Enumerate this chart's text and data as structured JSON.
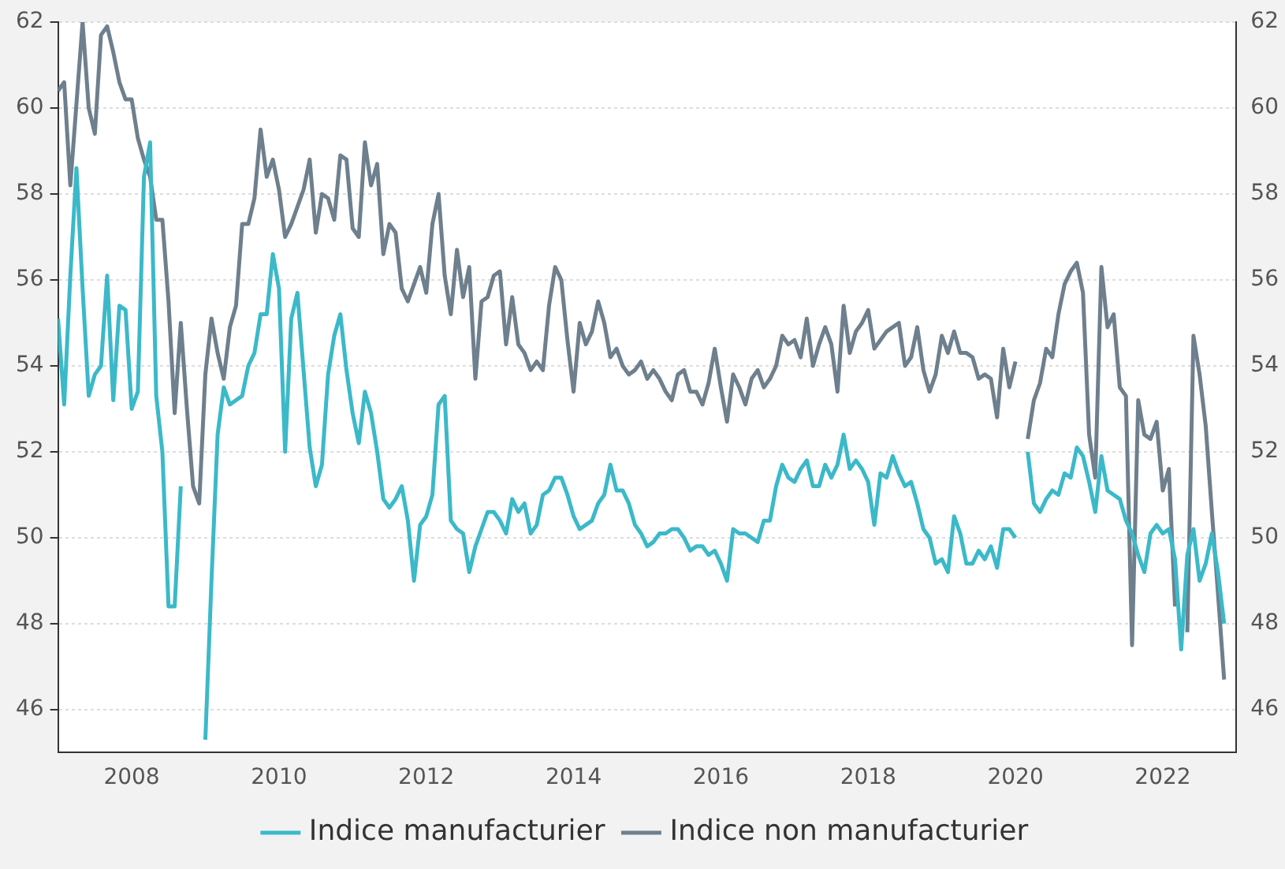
{
  "chart_data": {
    "type": "line",
    "x": [
      "2007-01",
      "2007-02",
      "2007-03",
      "2007-04",
      "2007-05",
      "2007-06",
      "2007-07",
      "2007-08",
      "2007-09",
      "2007-10",
      "2007-11",
      "2007-12",
      "2008-01",
      "2008-02",
      "2008-03",
      "2008-04",
      "2008-05",
      "2008-06",
      "2008-07",
      "2008-08",
      "2008-09",
      "2008-10",
      "2008-11",
      "2008-12",
      "2009-01",
      "2009-02",
      "2009-03",
      "2009-04",
      "2009-05",
      "2009-06",
      "2009-07",
      "2009-08",
      "2009-09",
      "2009-10",
      "2009-11",
      "2009-12",
      "2010-01",
      "2010-02",
      "2010-03",
      "2010-04",
      "2010-05",
      "2010-06",
      "2010-07",
      "2010-08",
      "2010-09",
      "2010-10",
      "2010-11",
      "2010-12",
      "2011-01",
      "2011-02",
      "2011-03",
      "2011-04",
      "2011-05",
      "2011-06",
      "2011-07",
      "2011-08",
      "2011-09",
      "2011-10",
      "2011-11",
      "2011-12",
      "2012-01",
      "2012-02",
      "2012-03",
      "2012-04",
      "2012-05",
      "2012-06",
      "2012-07",
      "2012-08",
      "2012-09",
      "2012-10",
      "2012-11",
      "2012-12",
      "2013-01",
      "2013-02",
      "2013-03",
      "2013-04",
      "2013-05",
      "2013-06",
      "2013-07",
      "2013-08",
      "2013-09",
      "2013-10",
      "2013-11",
      "2013-12",
      "2014-01",
      "2014-02",
      "2014-03",
      "2014-04",
      "2014-05",
      "2014-06",
      "2014-07",
      "2014-08",
      "2014-09",
      "2014-10",
      "2014-11",
      "2014-12",
      "2015-01",
      "2015-02",
      "2015-03",
      "2015-04",
      "2015-05",
      "2015-06",
      "2015-07",
      "2015-08",
      "2015-09",
      "2015-10",
      "2015-11",
      "2015-12",
      "2016-01",
      "2016-02",
      "2016-03",
      "2016-04",
      "2016-05",
      "2016-06",
      "2016-07",
      "2016-08",
      "2016-09",
      "2016-10",
      "2016-11",
      "2016-12",
      "2017-01",
      "2017-02",
      "2017-03",
      "2017-04",
      "2017-05",
      "2017-06",
      "2017-07",
      "2017-08",
      "2017-09",
      "2017-10",
      "2017-11",
      "2017-12",
      "2018-01",
      "2018-02",
      "2018-03",
      "2018-04",
      "2018-05",
      "2018-06",
      "2018-07",
      "2018-08",
      "2018-09",
      "2018-10",
      "2018-11",
      "2018-12",
      "2019-01",
      "2019-02",
      "2019-03",
      "2019-04",
      "2019-05",
      "2019-06",
      "2019-07",
      "2019-08",
      "2019-09",
      "2019-10",
      "2019-11",
      "2019-12",
      "2020-01",
      "2020-02",
      "2020-03",
      "2020-04",
      "2020-05",
      "2020-06",
      "2020-07",
      "2020-08",
      "2020-09",
      "2020-10",
      "2020-11",
      "2020-12",
      "2021-01",
      "2021-02",
      "2021-03",
      "2021-04",
      "2021-05",
      "2021-06",
      "2021-07",
      "2021-08",
      "2021-09",
      "2021-10",
      "2021-11",
      "2021-12",
      "2022-01",
      "2022-02",
      "2022-03",
      "2022-04",
      "2022-05",
      "2022-06",
      "2022-07",
      "2022-08",
      "2022-09",
      "2022-10",
      "2022-11"
    ],
    "series": [
      {
        "name": "Indice manufacturier",
        "color": "#3bb9c9",
        "values": [
          55.1,
          53.1,
          56.1,
          58.6,
          55.8,
          53.3,
          53.8,
          54.0,
          56.1,
          53.2,
          55.4,
          55.3,
          53.0,
          53.4,
          58.4,
          59.2,
          53.3,
          52.0,
          48.4,
          48.4,
          51.2,
          null,
          null,
          null,
          45.3,
          49.0,
          52.4,
          53.5,
          53.1,
          53.2,
          53.3,
          54.0,
          54.3,
          55.2,
          55.2,
          56.6,
          55.8,
          52.0,
          55.1,
          55.7,
          53.9,
          52.1,
          51.2,
          51.7,
          53.8,
          54.7,
          55.2,
          53.9,
          52.9,
          52.2,
          53.4,
          52.9,
          52.0,
          50.9,
          50.7,
          50.9,
          51.2,
          50.4,
          49.0,
          50.3,
          50.5,
          51.0,
          53.1,
          53.3,
          50.4,
          50.2,
          50.1,
          49.2,
          49.8,
          50.2,
          50.6,
          50.6,
          50.4,
          50.1,
          50.9,
          50.6,
          50.8,
          50.1,
          50.3,
          51.0,
          51.1,
          51.4,
          51.4,
          51.0,
          50.5,
          50.2,
          50.3,
          50.4,
          50.8,
          51.0,
          51.7,
          51.1,
          51.1,
          50.8,
          50.3,
          50.1,
          49.8,
          49.9,
          50.1,
          50.1,
          50.2,
          50.2,
          50.0,
          49.7,
          49.8,
          49.8,
          49.6,
          49.7,
          49.4,
          49.0,
          50.2,
          50.1,
          50.1,
          50.0,
          49.9,
          50.4,
          50.4,
          51.2,
          51.7,
          51.4,
          51.3,
          51.6,
          51.8,
          51.2,
          51.2,
          51.7,
          51.4,
          51.7,
          52.4,
          51.6,
          51.8,
          51.6,
          51.3,
          50.3,
          51.5,
          51.4,
          51.9,
          51.5,
          51.2,
          51.3,
          50.8,
          50.2,
          50.0,
          49.4,
          49.5,
          49.2,
          50.5,
          50.1,
          49.4,
          49.4,
          49.7,
          49.5,
          49.8,
          49.3,
          50.2,
          50.2,
          50.0,
          null,
          52.0,
          50.8,
          50.6,
          50.9,
          51.1,
          51.0,
          51.5,
          51.4,
          52.1,
          51.9,
          51.3,
          50.6,
          51.9,
          51.1,
          51.0,
          50.9,
          50.4,
          50.1,
          49.6,
          49.2,
          50.1,
          50.3,
          50.1,
          50.2,
          49.5,
          47.4,
          49.6,
          50.2,
          49.0,
          49.4,
          50.1,
          49.2,
          48.0
        ]
      },
      {
        "name": "Indice non manufacturier",
        "color": "#6e7f8d",
        "values": [
          60.4,
          60.6,
          58.2,
          60.1,
          62.0,
          60.0,
          59.4,
          61.7,
          61.9,
          61.3,
          60.6,
          60.2,
          60.2,
          59.3,
          58.8,
          58.4,
          57.4,
          57.4,
          55.5,
          52.9,
          55.0,
          53.0,
          51.2,
          50.8,
          53.8,
          55.1,
          54.3,
          53.7,
          54.9,
          55.4,
          57.3,
          57.3,
          57.9,
          59.5,
          58.4,
          58.8,
          58.1,
          57.0,
          57.3,
          57.7,
          58.1,
          58.8,
          57.1,
          58.0,
          57.9,
          57.4,
          58.9,
          58.8,
          57.2,
          57.0,
          59.2,
          58.2,
          58.7,
          56.6,
          57.3,
          57.1,
          55.8,
          55.5,
          55.9,
          56.3,
          55.7,
          57.3,
          58.0,
          56.1,
          55.2,
          56.7,
          55.6,
          56.3,
          53.7,
          55.5,
          55.6,
          56.1,
          56.2,
          54.5,
          55.6,
          54.5,
          54.3,
          53.9,
          54.1,
          53.9,
          55.4,
          56.3,
          56.0,
          54.6,
          53.4,
          55.0,
          54.5,
          54.8,
          55.5,
          55.0,
          54.2,
          54.4,
          54.0,
          53.8,
          53.9,
          54.1,
          53.7,
          53.9,
          53.7,
          53.4,
          53.2,
          53.8,
          53.9,
          53.4,
          53.4,
          53.1,
          53.6,
          54.4,
          53.5,
          52.7,
          53.8,
          53.5,
          53.1,
          53.7,
          53.9,
          53.5,
          53.7,
          54.0,
          54.7,
          54.5,
          54.6,
          54.2,
          55.1,
          54.0,
          54.5,
          54.9,
          54.5,
          53.4,
          55.4,
          54.3,
          54.8,
          55.0,
          55.3,
          54.4,
          54.6,
          54.8,
          54.9,
          55.0,
          54.0,
          54.2,
          54.9,
          53.9,
          53.4,
          53.8,
          54.7,
          54.3,
          54.8,
          54.3,
          54.3,
          54.2,
          53.7,
          53.8,
          53.7,
          52.8,
          54.4,
          53.5,
          54.1,
          null,
          52.3,
          53.2,
          53.6,
          54.4,
          54.2,
          55.2,
          55.9,
          56.2,
          56.4,
          55.7,
          52.4,
          51.4,
          56.3,
          54.9,
          55.2,
          53.5,
          53.3,
          47.5,
          53.2,
          52.4,
          52.3,
          52.7,
          51.1,
          51.6,
          48.4,
          null,
          47.8,
          54.7,
          53.8,
          52.6,
          50.6,
          48.7,
          46.7
        ]
      }
    ],
    "xlim": [
      "2007",
      "2023"
    ],
    "xticks": [
      "2008",
      "2010",
      "2012",
      "2014",
      "2016",
      "2018",
      "2020",
      "2022"
    ],
    "ylim": [
      45,
      62
    ],
    "yticks": [
      46,
      48,
      50,
      52,
      54,
      56,
      58,
      60,
      62
    ],
    "y2lim": [
      45,
      62
    ],
    "y2ticks": [
      46,
      48,
      50,
      52,
      54,
      56,
      58,
      60,
      62
    ],
    "grid": "y",
    "legend": "bottom",
    "marker": "none",
    "line_style": "solid"
  }
}
